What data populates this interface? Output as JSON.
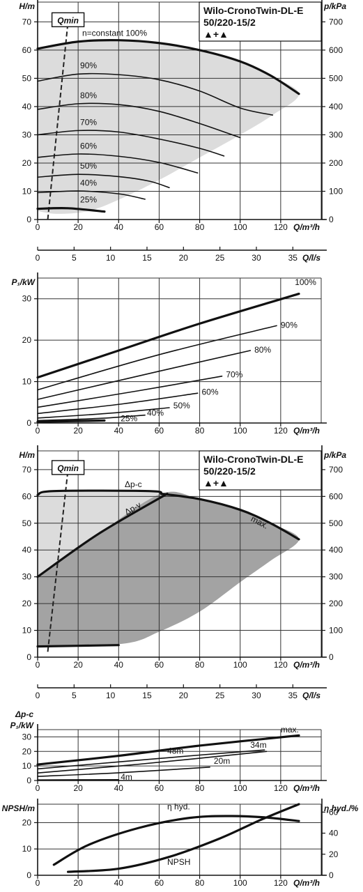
{
  "chart_data": [
    {
      "type": "line",
      "title": "Wilo-CronoTwin-DL-E 50/220-15/2",
      "pump_icons": "▲+▲",
      "ylabel": "H/m",
      "ylabel_right": "p/kPa",
      "xlabel": "Q/m³/h",
      "xlabel2": "Q/l/s",
      "xlim": [
        0,
        140
      ],
      "ylim": [
        0,
        75
      ],
      "x_ticks": [
        "0",
        "20",
        "40",
        "60",
        "80",
        "100",
        "120"
      ],
      "y_ticks": [
        "0",
        "10",
        "20",
        "30",
        "40",
        "50",
        "60",
        "70"
      ],
      "yr_ticks": [
        "0",
        "100",
        "200",
        "300",
        "400",
        "500",
        "600",
        "700"
      ],
      "x2_ticks": [
        "0",
        "5",
        "10",
        "15",
        "20",
        "25",
        "30",
        "35"
      ],
      "qmin_label": "Qmin",
      "qmin_line": [
        [
          5,
          0
        ],
        [
          15,
          70
        ]
      ],
      "grid": true,
      "series": [
        {
          "name": "n=constant 100%",
          "points": [
            [
              0,
              60.5
            ],
            [
              20,
              63
            ],
            [
              40,
              63.5
            ],
            [
              60,
              62.5
            ],
            [
              80,
              60
            ],
            [
              100,
              56
            ],
            [
              115,
              51
            ],
            [
              129,
              44.5
            ]
          ]
        },
        {
          "name": "90%",
          "points": [
            [
              0,
              49
            ],
            [
              20,
              51.5
            ],
            [
              40,
              51.3
            ],
            [
              60,
              49.5
            ],
            [
              80,
              45.5
            ],
            [
              100,
              39.5
            ],
            [
              116,
              37
            ]
          ]
        },
        {
          "name": "80%",
          "points": [
            [
              0,
              39
            ],
            [
              20,
              41
            ],
            [
              40,
              40.7
            ],
            [
              60,
              38.3
            ],
            [
              80,
              34
            ],
            [
              100,
              29
            ]
          ]
        },
        {
          "name": "70%",
          "points": [
            [
              0,
              30
            ],
            [
              20,
              31.5
            ],
            [
              40,
              31
            ],
            [
              60,
              28.5
            ],
            [
              80,
              25.2
            ],
            [
              92,
              22.5
            ]
          ]
        },
        {
          "name": "60%",
          "points": [
            [
              0,
              22
            ],
            [
              20,
              23.2
            ],
            [
              40,
              22.4
            ],
            [
              60,
              20.2
            ],
            [
              79,
              16.5
            ]
          ]
        },
        {
          "name": "50%",
          "points": [
            [
              0,
              15
            ],
            [
              20,
              16
            ],
            [
              40,
              15.2
            ],
            [
              55,
              13.6
            ],
            [
              65,
              11.3
            ]
          ]
        },
        {
          "name": "40%",
          "points": [
            [
              0,
              9.5
            ],
            [
              20,
              10.1
            ],
            [
              40,
              9.1
            ],
            [
              53,
              7.2
            ]
          ]
        },
        {
          "name": "25%",
          "points": [
            [
              0,
              3.8
            ],
            [
              15,
              4
            ],
            [
              33,
              2.8
            ]
          ]
        }
      ],
      "labels": [
        {
          "text": "n=constant 100%",
          "at": [
            22,
            65
          ]
        },
        {
          "text": "90%",
          "at": [
            21,
            53.5
          ]
        },
        {
          "text": "80%",
          "at": [
            21,
            43
          ]
        },
        {
          "text": "70%",
          "at": [
            21,
            33.5
          ]
        },
        {
          "text": "60%",
          "at": [
            21,
            25
          ]
        },
        {
          "text": "50%",
          "at": [
            21,
            18
          ]
        },
        {
          "text": "40%",
          "at": [
            21,
            12
          ]
        },
        {
          "text": "25%",
          "at": [
            21,
            6
          ]
        }
      ],
      "shaded_area": [
        [
          0,
          60.5
        ],
        [
          20,
          63
        ],
        [
          40,
          63.5
        ],
        [
          60,
          62.5
        ],
        [
          80,
          60
        ],
        [
          100,
          56
        ],
        [
          115,
          51
        ],
        [
          129,
          44.5
        ],
        [
          116,
          37
        ],
        [
          100,
          30
        ],
        [
          80,
          22
        ],
        [
          60,
          14
        ],
        [
          40,
          7
        ],
        [
          25,
          3
        ],
        [
          10,
          2
        ],
        [
          0,
          3
        ]
      ]
    },
    {
      "type": "line",
      "ylabel": "P₁/kW",
      "xlabel": "Q/m³/h",
      "xlim": [
        0,
        140
      ],
      "ylim": [
        0,
        35
      ],
      "x_ticks": [
        "0",
        "20",
        "40",
        "60",
        "80",
        "100",
        "120"
      ],
      "y_ticks": [
        "0",
        "10",
        "20",
        "30"
      ],
      "grid": true,
      "series": [
        {
          "name": "100%",
          "points": [
            [
              0,
              11
            ],
            [
              40,
              17.5
            ],
            [
              80,
              24
            ],
            [
              129,
              31.2
            ]
          ]
        },
        {
          "name": "90%",
          "points": [
            [
              0,
              8
            ],
            [
              60,
              16.5
            ],
            [
              118,
              23.5
            ]
          ]
        },
        {
          "name": "80%",
          "points": [
            [
              0,
              5.7
            ],
            [
              60,
              12.5
            ],
            [
              105,
              17.5
            ]
          ]
        },
        {
          "name": "70%",
          "points": [
            [
              0,
              3.8
            ],
            [
              50,
              7.8
            ],
            [
              91,
              11.3
            ]
          ]
        },
        {
          "name": "60%",
          "points": [
            [
              0,
              2.3
            ],
            [
              40,
              4.5
            ],
            [
              79,
              7.2
            ]
          ]
        },
        {
          "name": "50%",
          "points": [
            [
              0,
              1.2
            ],
            [
              34,
              2.3
            ],
            [
              65,
              3.7
            ]
          ]
        },
        {
          "name": "40%",
          "points": [
            [
              0,
              0.6
            ],
            [
              30,
              1.1
            ],
            [
              53,
              1.9
            ]
          ]
        },
        {
          "name": "25%",
          "points": [
            [
              0,
              0.3
            ],
            [
              33,
              0.6
            ]
          ]
        }
      ],
      "labels": [
        {
          "text": "100%",
          "at": [
            127,
            33.3
          ]
        },
        {
          "text": "90%",
          "at": [
            120,
            23
          ]
        },
        {
          "text": "80%",
          "at": [
            107,
            17
          ]
        },
        {
          "text": "70%",
          "at": [
            93,
            11
          ]
        },
        {
          "text": "60%",
          "at": [
            81,
            6.8
          ]
        },
        {
          "text": "50%",
          "at": [
            67,
            3.5
          ]
        },
        {
          "text": "40%",
          "at": [
            54,
            1.8
          ]
        },
        {
          "text": "25%",
          "at": [
            41,
            0.4
          ]
        }
      ]
    },
    {
      "type": "area",
      "title": "Wilo-CronoTwin-DL-E 50/220-15/2",
      "pump_icons": "▲+▲",
      "ylabel": "H/m",
      "ylabel_right": "p/kPa",
      "xlabel": "Q/m³/h",
      "xlabel2": "Q/l/s",
      "xlim": [
        0,
        140
      ],
      "ylim": [
        0,
        75
      ],
      "x_ticks": [
        "0",
        "20",
        "40",
        "60",
        "80",
        "100",
        "120"
      ],
      "y_ticks": [
        "0",
        "10",
        "20",
        "30",
        "40",
        "50",
        "60",
        "70"
      ],
      "yr_ticks": [
        "0",
        "100",
        "200",
        "300",
        "400",
        "500",
        "600",
        "700"
      ],
      "x2_ticks": [
        "0",
        "5",
        "10",
        "15",
        "20",
        "25",
        "30",
        "35"
      ],
      "qmin_label": "Qmin",
      "qmin_line": [
        [
          5,
          2
        ],
        [
          15,
          70
        ]
      ],
      "grid": true,
      "series": [
        {
          "name": "Δp-c",
          "points": [
            [
              0,
              60.5
            ],
            [
              8,
              62
            ],
            [
              55,
              62
            ],
            [
              61,
              61
            ]
          ]
        },
        {
          "name": "Δp-v",
          "points": [
            [
              0,
              30
            ],
            [
              30,
              46
            ],
            [
              64,
              61
            ]
          ]
        },
        {
          "name": "max.",
          "points": [
            [
              61,
              61
            ],
            [
              80,
              59
            ],
            [
              100,
              55
            ],
            [
              115,
              50
            ],
            [
              129,
              44
            ]
          ]
        },
        {
          "name": "min",
          "points": [
            [
              0,
              4
            ],
            [
              40,
              4.5
            ]
          ]
        }
      ],
      "labels": [
        {
          "text": "Δp-c",
          "at": [
            43,
            63.5
          ]
        },
        {
          "text": "Δp-v",
          "at": [
            44,
            53
          ]
        },
        {
          "text": "max.",
          "at": [
            105,
            51
          ]
        }
      ],
      "light_area": [
        [
          0,
          60.5
        ],
        [
          8,
          62
        ],
        [
          55,
          62
        ],
        [
          61,
          61
        ],
        [
          30,
          46
        ],
        [
          0,
          30
        ]
      ],
      "dark_area": [
        [
          0,
          30
        ],
        [
          30,
          46
        ],
        [
          61,
          61
        ],
        [
          80,
          59
        ],
        [
          100,
          55
        ],
        [
          115,
          50
        ],
        [
          129,
          44
        ],
        [
          115,
          36
        ],
        [
          100,
          28
        ],
        [
          80,
          17
        ],
        [
          60,
          9.5
        ],
        [
          42,
          5
        ],
        [
          0,
          4
        ]
      ]
    },
    {
      "type": "line",
      "ylabel_top": "Δp-c",
      "ylabel": "P₁/kW",
      "xlabel": "Q/m³/h",
      "xlim": [
        0,
        140
      ],
      "ylim": [
        0,
        35
      ],
      "x_ticks": [
        "0",
        "20",
        "40",
        "60",
        "80",
        "100",
        "120"
      ],
      "y_ticks": [
        "0",
        "10",
        "20",
        "30"
      ],
      "grid": true,
      "series": [
        {
          "name": "max.",
          "points": [
            [
              0,
              11
            ],
            [
              40,
              17
            ],
            [
              80,
              24
            ],
            [
              129,
              31
            ]
          ]
        },
        {
          "name": "48m",
          "points": [
            [
              0,
              8
            ],
            [
              40,
              12.8
            ],
            [
              80,
              17.5
            ],
            [
              112,
              21
            ]
          ]
        },
        {
          "name": "34m",
          "points": [
            [
              0,
              5.2
            ],
            [
              50,
              11.2
            ],
            [
              113,
              20
            ]
          ]
        },
        {
          "name": "20m",
          "points": [
            [
              0,
              2.8
            ],
            [
              40,
              5.3
            ],
            [
              85,
              9.2
            ]
          ]
        },
        {
          "name": "4m",
          "points": [
            [
              0,
              0.4
            ],
            [
              40,
              0.6
            ]
          ]
        }
      ],
      "labels": [
        {
          "text": "max.",
          "at": [
            120,
            33
          ]
        },
        {
          "text": "48m",
          "at": [
            64,
            18.5
          ]
        },
        {
          "text": "34m",
          "at": [
            105,
            22.5
          ]
        },
        {
          "text": "20m",
          "at": [
            87,
            11.5
          ]
        },
        {
          "text": "4m",
          "at": [
            41,
            0.4
          ]
        }
      ]
    },
    {
      "type": "line",
      "ylabel": "NPSH/m",
      "ylabel_right": "η hyd./%",
      "xlabel": "Q/m³/h",
      "xlim": [
        0,
        140
      ],
      "ylim": [
        0,
        26
      ],
      "x_ticks": [
        "0",
        "20",
        "40",
        "60",
        "80",
        "100",
        "120"
      ],
      "y_ticks": [
        "0",
        "10",
        "20"
      ],
      "yr_ticks": [
        "0",
        "20",
        "40",
        "60"
      ],
      "grid": true,
      "series": [
        {
          "name": "η hyd.",
          "points": [
            [
              8,
              4
            ],
            [
              25,
              11.5
            ],
            [
              50,
              18
            ],
            [
              75,
              21.8
            ],
            [
              95,
              22.5
            ],
            [
              112,
              22
            ],
            [
              129,
              20.6
            ]
          ]
        },
        {
          "name": "NPSH",
          "points": [
            [
              15,
              1.3
            ],
            [
              40,
              2.5
            ],
            [
              65,
              7
            ],
            [
              90,
              14
            ],
            [
              110,
              21
            ],
            [
              129,
              27
            ]
          ]
        }
      ],
      "labels": [
        {
          "text": "η hyd.",
          "at": [
            64,
            25
          ]
        },
        {
          "text": "NPSH",
          "at": [
            64,
            4
          ]
        }
      ]
    }
  ]
}
